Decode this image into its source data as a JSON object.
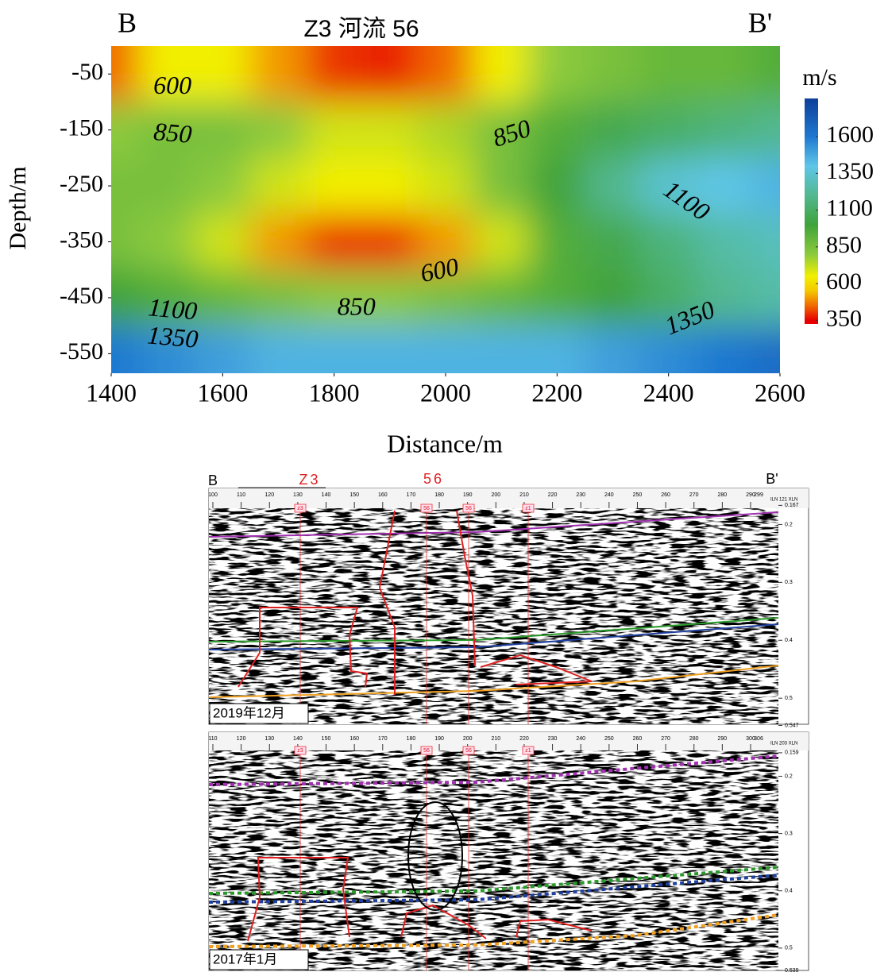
{
  "chart_data": {
    "type": "contour",
    "title": "Z3 河流 56",
    "left_label": "B",
    "right_label": "B'",
    "xlabel": "Distance/m",
    "ylabel": "Depth/m",
    "colorbar_label": "m/s",
    "xlim": [
      1400,
      2600
    ],
    "xticks": [
      1400,
      1600,
      1800,
      2000,
      2200,
      2400,
      2600
    ],
    "ylim": [
      -585,
      0
    ],
    "yticks": [
      -50,
      -150,
      -250,
      -350,
      -450,
      -550
    ],
    "x": [
      1400,
      1500,
      1600,
      1700,
      1800,
      1900,
      2000,
      2100,
      2200,
      2300,
      2400,
      2500,
      2600
    ],
    "y": [
      -50,
      -150,
      -250,
      -350,
      -450,
      -550
    ],
    "z": [
      [
        450,
        650,
        650,
        500,
        400,
        380,
        450,
        650,
        800,
        850,
        900,
        900,
        950
      ],
      [
        800,
        850,
        850,
        800,
        700,
        700,
        750,
        850,
        950,
        1050,
        1100,
        1150,
        1200
      ],
      [
        850,
        850,
        800,
        700,
        650,
        650,
        700,
        850,
        1000,
        1200,
        1350,
        1400,
        1450
      ],
      [
        850,
        800,
        700,
        500,
        400,
        400,
        500,
        700,
        950,
        1050,
        1150,
        1250,
        1300
      ],
      [
        1000,
        950,
        900,
        850,
        800,
        800,
        850,
        900,
        950,
        1000,
        1100,
        1200,
        1250
      ],
      [
        1600,
        1550,
        1500,
        1450,
        1450,
        1450,
        1450,
        1450,
        1450,
        1500,
        1550,
        1600,
        1650
      ]
    ],
    "zlim": [
      325,
      1860
    ],
    "zticks": [
      350,
      600,
      850,
      1100,
      1350,
      1600
    ],
    "colorscale": [
      {
        "value": 350,
        "color": "#e60000"
      },
      {
        "value": 450,
        "color": "#f06a00"
      },
      {
        "value": 550,
        "color": "#f5c800"
      },
      {
        "value": 650,
        "color": "#f2ef00"
      },
      {
        "value": 800,
        "color": "#8cca3c"
      },
      {
        "value": 1000,
        "color": "#3fa33a"
      },
      {
        "value": 1200,
        "color": "#52b890"
      },
      {
        "value": 1400,
        "color": "#5fc6e8"
      },
      {
        "value": 1600,
        "color": "#1f78d0"
      },
      {
        "value": 1860,
        "color": "#0d3f99"
      }
    ],
    "contour_labels": [
      {
        "value": 600,
        "x": 1510,
        "y": -75
      },
      {
        "value": 850,
        "x": 1510,
        "y": -160
      },
      {
        "value": 850,
        "x": 2120,
        "y": -160
      },
      {
        "value": 1100,
        "x": 2430,
        "y": -280
      },
      {
        "value": 600,
        "x": 1990,
        "y": -405
      },
      {
        "value": 850,
        "x": 1840,
        "y": -470
      },
      {
        "value": 1100,
        "x": 1510,
        "y": -475
      },
      {
        "value": 1350,
        "x": 1510,
        "y": -525
      },
      {
        "value": 1350,
        "x": 2440,
        "y": -490
      }
    ]
  },
  "sections": {
    "left_label": "B",
    "right_label": "B'",
    "well_a": "Z3",
    "well_b": "56",
    "panels": [
      {
        "date": "2019年12月",
        "ruler_ticks": [
          100,
          110,
          120,
          130,
          140,
          150,
          160,
          170,
          180,
          190,
          200,
          210,
          220,
          230,
          240,
          250,
          260,
          270,
          280,
          290
        ],
        "ruler_end": 299,
        "ruler_tag": "ILN 121 XLN",
        "time_ticks": [
          0.167,
          0.2,
          0.3,
          0.4,
          0.5,
          0.547
        ],
        "tlim": [
          0.172,
          0.545
        ],
        "wells": [
          "z3",
          "56",
          "56",
          "z1"
        ]
      },
      {
        "date": "2017年1月",
        "ruler_ticks": [
          110,
          120,
          130,
          140,
          150,
          160,
          170,
          180,
          190,
          200,
          210,
          220,
          230,
          240,
          250,
          260,
          270,
          280,
          290,
          300
        ],
        "ruler_end": 306,
        "ruler_tag": "ILN 203 XLN",
        "time_ticks": [
          0.159,
          0.2,
          0.3,
          0.4,
          0.5,
          0.539
        ],
        "tlim": [
          0.155,
          0.539
        ],
        "wells": [
          "z3",
          "56",
          "56",
          "z1"
        ]
      }
    ]
  }
}
